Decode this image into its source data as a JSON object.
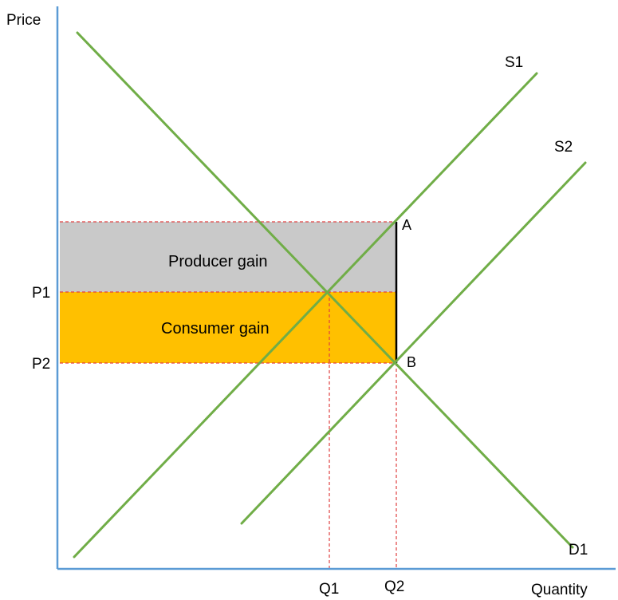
{
  "chart_data": {
    "type": "supply-demand diagram",
    "xlabel": "Quantity",
    "ylabel": "Price",
    "price_labels": {
      "p1": "P1",
      "p2": "P2"
    },
    "quantity_labels": {
      "q1": "Q1",
      "q2": "Q2"
    },
    "curves": [
      {
        "name": "S1",
        "kind": "supply"
      },
      {
        "name": "S2",
        "kind": "supply"
      },
      {
        "name": "D1",
        "kind": "demand"
      }
    ],
    "points": {
      "a": "A",
      "b": "B"
    },
    "areas": [
      {
        "name": "Producer gain",
        "color": "#c9c9c9"
      },
      {
        "name": "Consumer gain",
        "color": "#ffc000"
      }
    ],
    "colors": {
      "axis": "#5b9bd5",
      "curve": "#70ad47",
      "guide": "#e04040",
      "ab_segment": "#000000"
    }
  }
}
